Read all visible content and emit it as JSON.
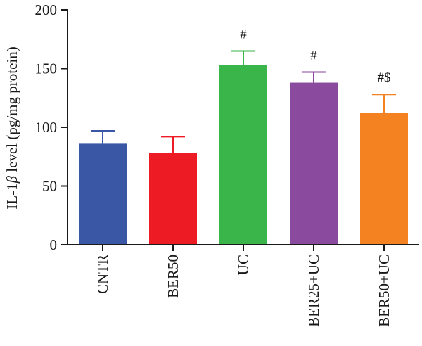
{
  "chart_data": {
    "type": "bar",
    "ylabel_parts": [
      "IL-1",
      "β",
      " level (pg/mg protein)"
    ],
    "ylim": [
      0,
      200
    ],
    "yticks": [
      0,
      50,
      100,
      150,
      200
    ],
    "grid": false,
    "categories": [
      "CNTR",
      "BER50",
      "UC",
      "BER25+UC",
      "BER50+UC"
    ],
    "values": [
      86,
      78,
      153,
      138,
      112
    ],
    "errors": [
      11,
      14,
      12,
      9,
      16
    ],
    "significance": [
      "",
      "",
      "#",
      "#",
      "#$"
    ],
    "colors": [
      "#3a57a5",
      "#ed1c24",
      "#39b54a",
      "#8a4a9d",
      "#f58220"
    ],
    "error_bar_color": "#3a57a5"
  }
}
